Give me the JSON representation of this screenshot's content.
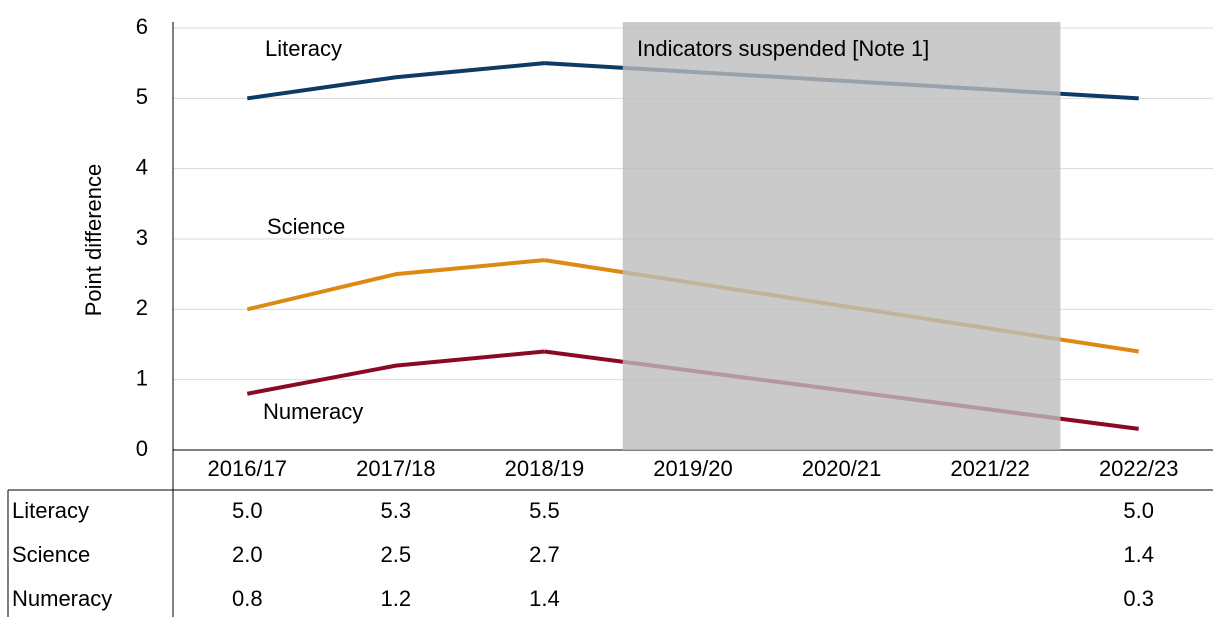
{
  "chart_data": {
    "type": "line",
    "y_label": "Point difference",
    "categories": [
      "2016/17",
      "2017/18",
      "2018/19",
      "2019/20",
      "2020/21",
      "2021/22",
      "2022/23"
    ],
    "series": [
      {
        "name": "Literacy",
        "color": "#0e3b63",
        "values": [
          5.0,
          5.3,
          5.5,
          null,
          null,
          null,
          5.0
        ],
        "value_labels": [
          "5.0",
          "5.3",
          "5.5",
          null,
          null,
          null,
          "5.0"
        ]
      },
      {
        "name": "Science",
        "color": "#dd8a12",
        "values": [
          2.0,
          2.5,
          2.7,
          null,
          null,
          null,
          1.4
        ],
        "value_labels": [
          "2.0",
          "2.5",
          "2.7",
          null,
          null,
          null,
          "1.4"
        ]
      },
      {
        "name": "Numeracy",
        "color": "#8a0a26",
        "values": [
          0.8,
          1.2,
          1.4,
          null,
          null,
          null,
          0.3
        ],
        "value_labels": [
          "0.8",
          "1.2",
          "1.4",
          null,
          null,
          null,
          "0.3"
        ]
      }
    ],
    "ylim": [
      0,
      6
    ],
    "yticks": [
      0,
      1,
      2,
      3,
      4,
      5,
      6
    ],
    "grid": true,
    "annotation": "Indicators suspended [Note 1]",
    "shaded_from": "2019/20",
    "shaded_to": "2021/22"
  }
}
